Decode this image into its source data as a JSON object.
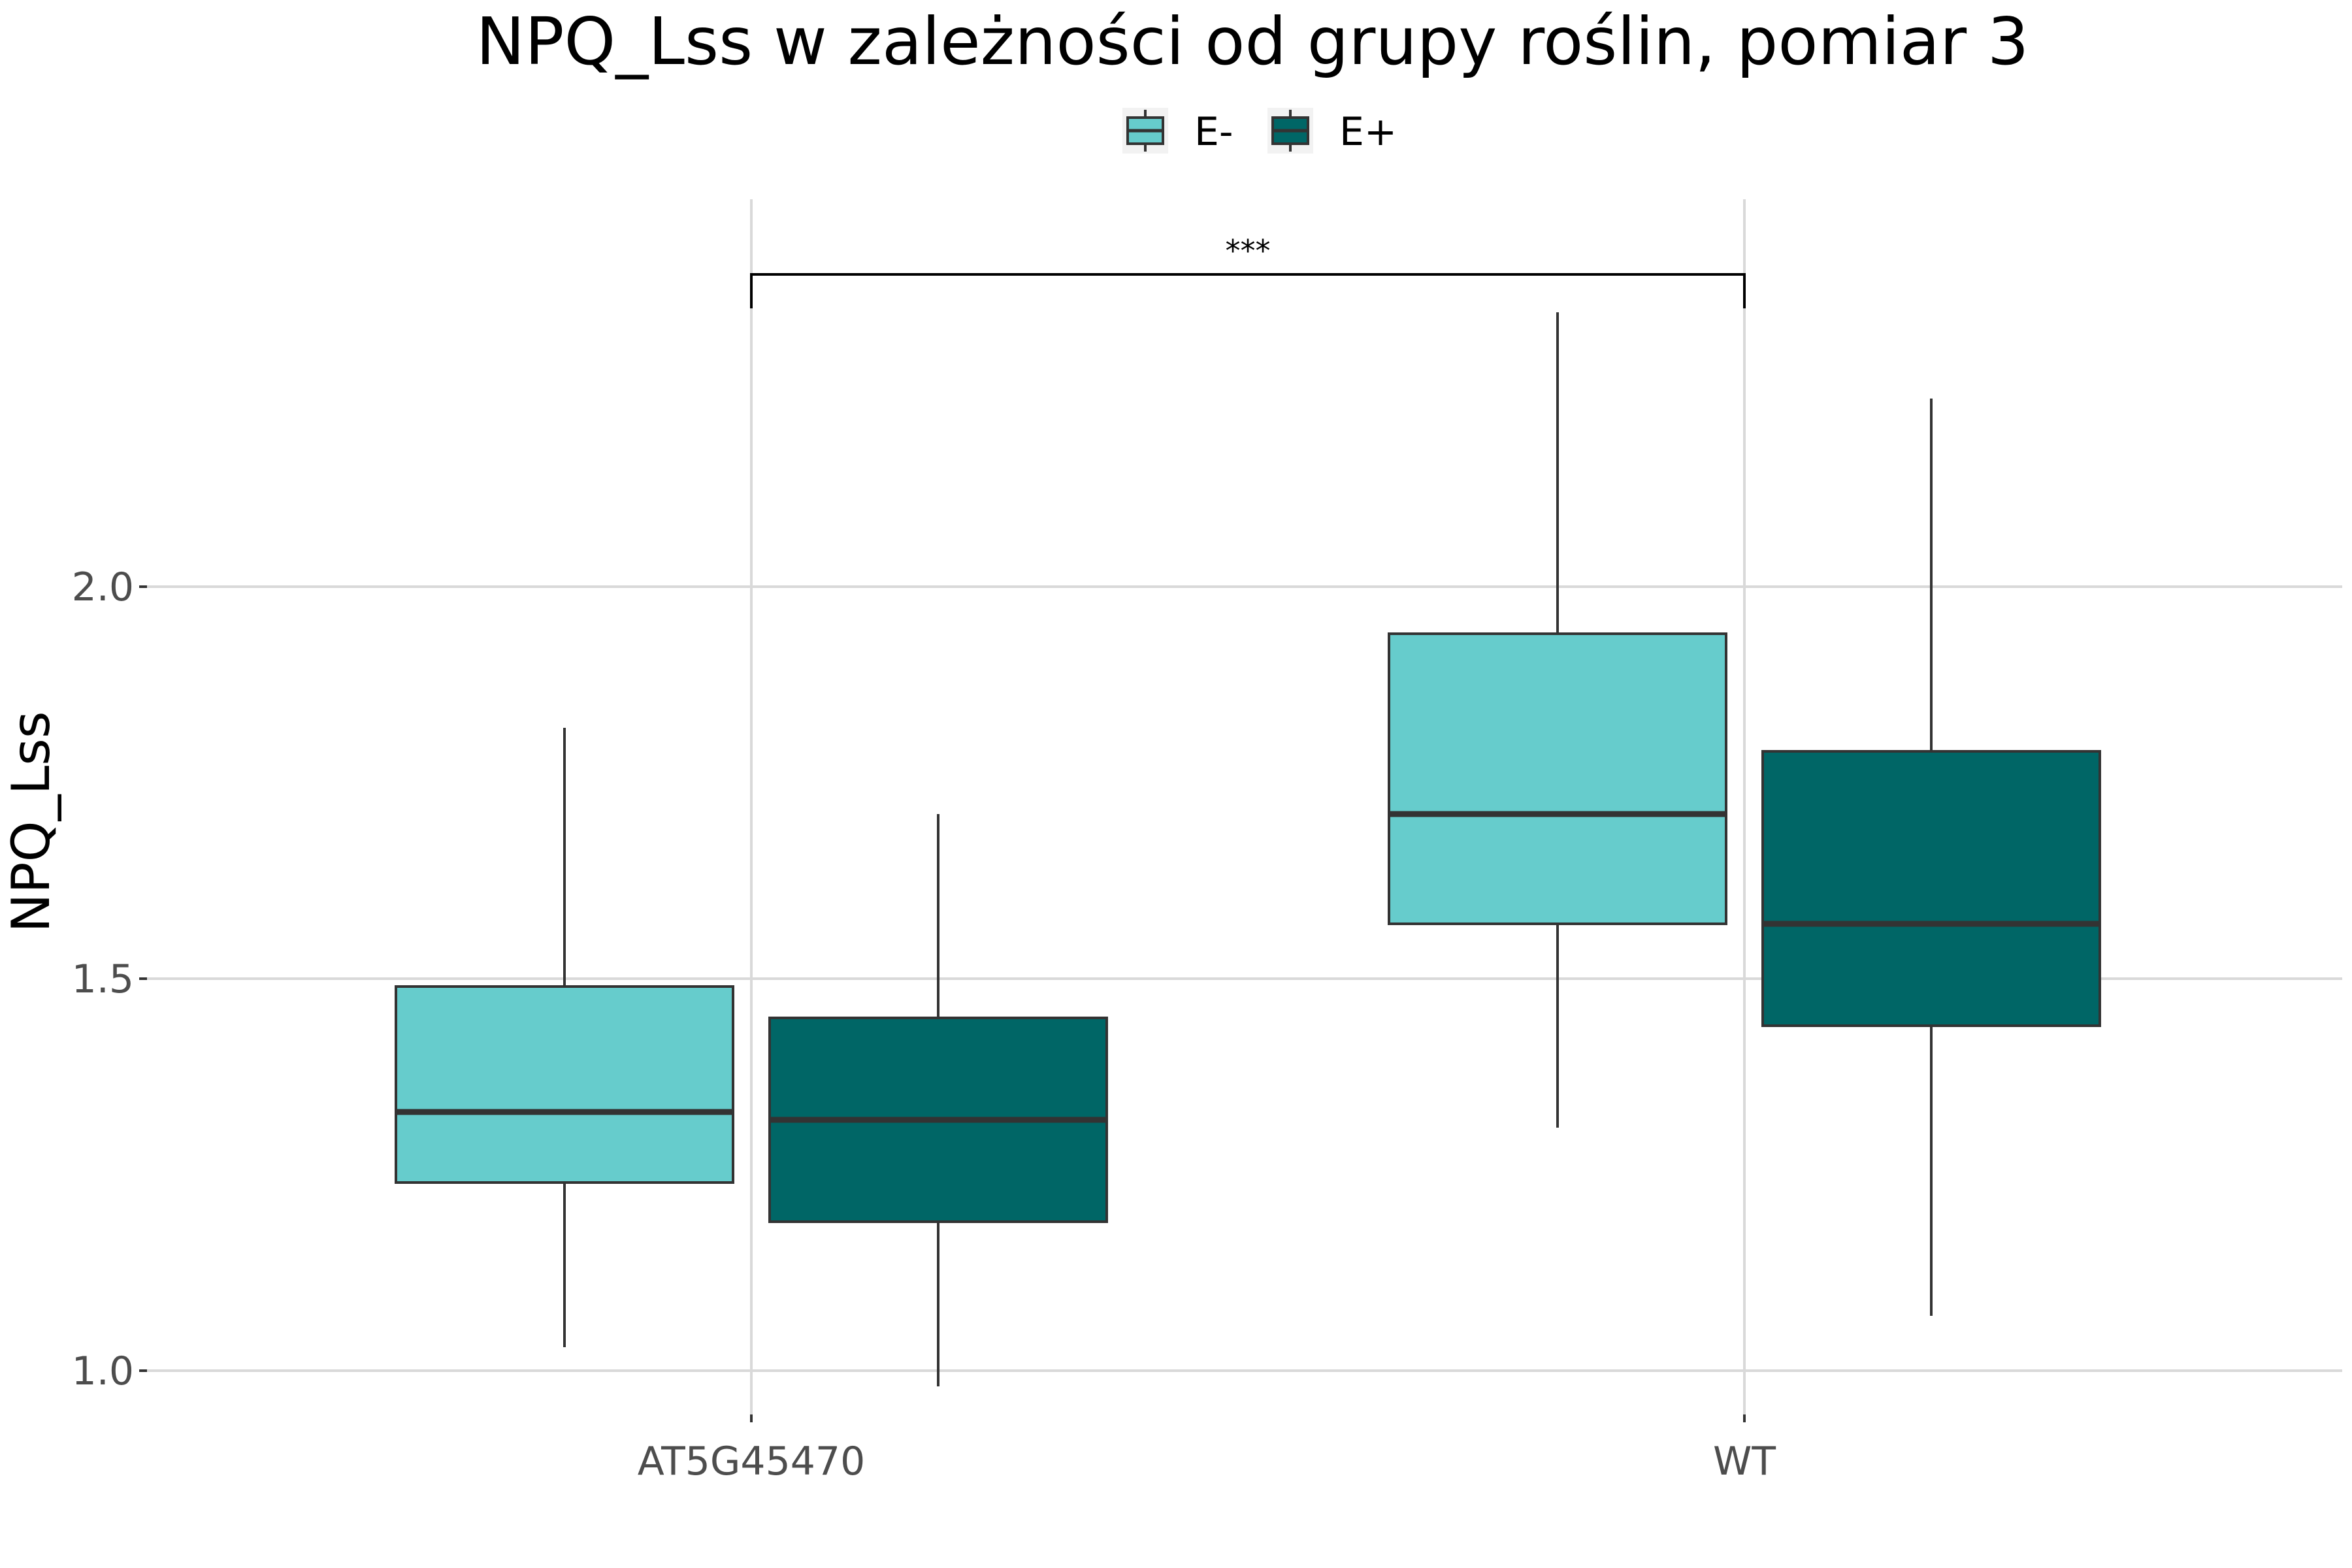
{
  "chart_data": {
    "type": "boxplot",
    "title": "NPQ_Lss w zależności od grupy roślin, pomiar 3",
    "ylabel": "NPQ_Lss",
    "xlabel": "",
    "categories": [
      "AT5G45470",
      "WT"
    ],
    "ylim": [
      0.93,
      2.5
    ],
    "yticks": [
      {
        "value": 1.0,
        "label": "1.0"
      },
      {
        "value": 1.5,
        "label": "1.5"
      },
      {
        "value": 2.0,
        "label": "2.0"
      }
    ],
    "grid": true,
    "legend": {
      "position": "top"
    },
    "series": [
      {
        "name": "E-",
        "color": "#66cccc",
        "boxes": [
          {
            "category": "AT5G45470",
            "whisker_low": 1.03,
            "q1": 1.24,
            "median": 1.33,
            "q3": 1.49,
            "whisker_high": 1.82
          },
          {
            "category": "WT",
            "whisker_low": 1.31,
            "q1": 1.57,
            "median": 1.71,
            "q3": 1.94,
            "whisker_high": 2.35
          }
        ]
      },
      {
        "name": "E+",
        "color": "#006666",
        "boxes": [
          {
            "category": "AT5G45470",
            "whisker_low": 0.98,
            "q1": 1.19,
            "median": 1.32,
            "q3": 1.45,
            "whisker_high": 1.71
          },
          {
            "category": "WT",
            "whisker_low": 1.07,
            "q1": 1.44,
            "median": 1.57,
            "q3": 1.79,
            "whisker_high": 2.24
          }
        ]
      }
    ],
    "annotations": [
      {
        "type": "significance",
        "from": "AT5G45470",
        "to": "WT",
        "y": 2.42,
        "label": "***"
      }
    ]
  }
}
